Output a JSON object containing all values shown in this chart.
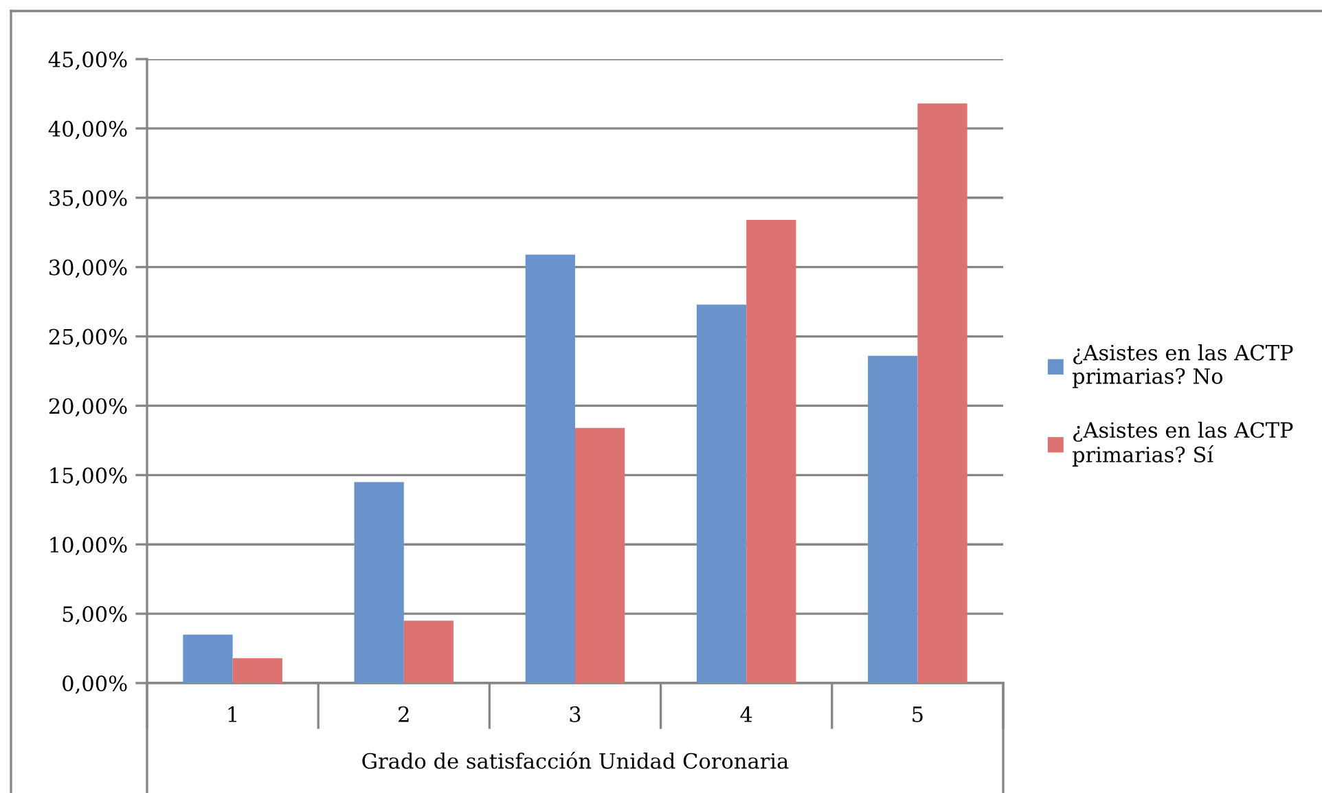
{
  "chart_data": {
    "type": "bar",
    "xlabel": "Grado de satisfacción Unidad Coronaria",
    "categories": [
      "1",
      "2",
      "3",
      "4",
      "5"
    ],
    "series": [
      {
        "name": "¿Asistes en las ACTP\nprimarias? No",
        "color": "#6a93cc",
        "values": [
          3.5,
          14.5,
          30.9,
          27.3,
          23.6
        ]
      },
      {
        "name": "¿Asistes en las ACTP\nprimarias? Sí",
        "color": "#dd7371",
        "values": [
          1.8,
          4.5,
          18.4,
          33.4,
          41.8
        ]
      }
    ],
    "ylim": [
      0,
      45
    ],
    "yticks": [
      {
        "value": 0,
        "label": "0,00%"
      },
      {
        "value": 5,
        "label": "5,00%"
      },
      {
        "value": 10,
        "label": "10,00%"
      },
      {
        "value": 15,
        "label": "15,00%"
      },
      {
        "value": 20,
        "label": "20,00%"
      },
      {
        "value": 25,
        "label": "25,00%"
      },
      {
        "value": 30,
        "label": "30,00%"
      },
      {
        "value": 35,
        "label": "35,00%"
      },
      {
        "value": 40,
        "label": "40,00%"
      },
      {
        "value": 45,
        "label": "45,00%"
      }
    ],
    "grid": "y",
    "legend": "right"
  }
}
